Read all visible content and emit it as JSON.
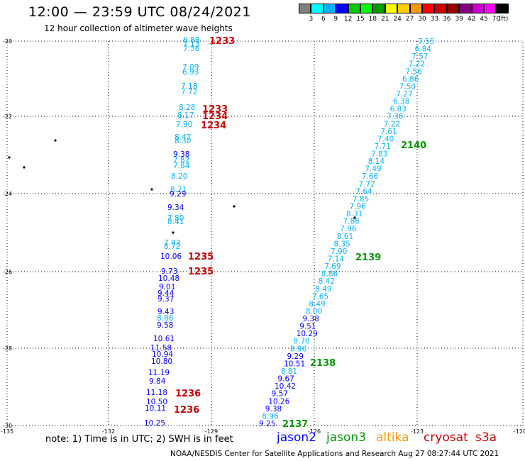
{
  "header": {
    "title": "12:00 — 23:59 UTC 08/24/2021",
    "subtitle": "12 hour collection of altimeter wave heights"
  },
  "colorbar": {
    "unit": "(ft)",
    "colors": [
      "#808080",
      "#00ffff",
      "#00b4ff",
      "#0000ff",
      "#00cc00",
      "#00ff00",
      "#009900",
      "#ffff00",
      "#ffcc00",
      "#ff9900",
      "#ff0000",
      "#cc0000",
      "#990000",
      "#800080",
      "#cc00cc",
      "#ff00ff",
      "#000000"
    ],
    "labels": [
      "3",
      "6",
      "9",
      "12",
      "15",
      "18",
      "21",
      "24",
      "27",
      "30",
      "33",
      "36",
      "39",
      "42",
      "45",
      "70"
    ]
  },
  "map": {
    "lat_labels": [
      "-20",
      "-22",
      "-24",
      "-26",
      "-28",
      "-30"
    ],
    "lon_labels": [
      "-135",
      "-132",
      "-129",
      "-126",
      "-123",
      "-120"
    ]
  },
  "colors": {
    "jason2": "#0000ff",
    "jason3": "#009900",
    "altika": "#ff9900",
    "cryosat": "#cc0000",
    "s3a": "#cc0000",
    "light": "#00b4ff"
  },
  "tracks": {
    "west": [
      {
        "text": "6.88",
        "c": "light"
      },
      {
        "text": "7.13",
        "c": "light"
      },
      {
        "text": "7.36",
        "c": "light"
      },
      {
        "text": "7.09",
        "c": "light"
      },
      {
        "text": "6.93",
        "c": "light"
      },
      {
        "text": "7.18",
        "c": "light"
      },
      {
        "text": "7.72",
        "c": "light"
      },
      {
        "text": "8.28",
        "c": "light"
      },
      {
        "text": "8.17",
        "c": "light"
      },
      {
        "text": "7.90",
        "c": "light"
      },
      {
        "text": "8.47",
        "c": "light"
      },
      {
        "text": "8.30",
        "c": "light"
      },
      {
        "text": "9.38",
        "c": "jason2"
      },
      {
        "text": "7.82",
        "c": "light"
      },
      {
        "text": "7.84",
        "c": "light"
      },
      {
        "text": "8.20",
        "c": "light"
      },
      {
        "text": "8.71",
        "c": "light"
      },
      {
        "text": "9.29",
        "c": "jason2"
      },
      {
        "text": "9.34",
        "c": "jason2"
      },
      {
        "text": "7.80",
        "c": "light"
      },
      {
        "text": "8.41",
        "c": "light"
      },
      {
        "text": "7.93",
        "c": "light"
      },
      {
        "text": "8.72",
        "c": "light"
      },
      {
        "text": "10.06",
        "c": "jason2"
      },
      {
        "text": "9.73",
        "c": "jason2"
      },
      {
        "text": "10.48",
        "c": "jason2"
      },
      {
        "text": "9.01",
        "c": "jason2"
      },
      {
        "text": "9.44",
        "c": "jason2"
      },
      {
        "text": "9.37",
        "c": "jason2"
      },
      {
        "text": "9.43",
        "c": "jason2"
      },
      {
        "text": "8.86",
        "c": "light"
      },
      {
        "text": "9.58",
        "c": "jason2"
      },
      {
        "text": "10.61",
        "c": "jason2"
      },
      {
        "text": "11.58",
        "c": "jason2"
      },
      {
        "text": "10.94",
        "c": "jason2"
      },
      {
        "text": "10.80",
        "c": "jason2"
      },
      {
        "text": "11.19",
        "c": "jason2"
      },
      {
        "text": "9.84",
        "c": "jason2"
      },
      {
        "text": "11.18",
        "c": "jason2"
      },
      {
        "text": "10.50",
        "c": "jason2"
      },
      {
        "text": "10.11",
        "c": "jason2"
      },
      {
        "text": "10.25",
        "c": "jason2"
      }
    ],
    "east": [
      {
        "text": "7.55",
        "c": "light"
      },
      {
        "text": "6.84",
        "c": "light"
      },
      {
        "text": "7.57",
        "c": "light"
      },
      {
        "text": "7.22",
        "c": "light"
      },
      {
        "text": "7.56",
        "c": "light"
      },
      {
        "text": "6.86",
        "c": "light"
      },
      {
        "text": "7.50",
        "c": "light"
      },
      {
        "text": "7.27",
        "c": "light"
      },
      {
        "text": "6.38",
        "c": "light"
      },
      {
        "text": "6.83",
        "c": "light"
      },
      {
        "text": "7.36",
        "c": "light"
      },
      {
        "text": "7.22",
        "c": "light"
      },
      {
        "text": "7.61",
        "c": "light"
      },
      {
        "text": "7.40",
        "c": "light"
      },
      {
        "text": "7.71",
        "c": "light"
      },
      {
        "text": "7.83",
        "c": "light"
      },
      {
        "text": "8.14",
        "c": "light"
      },
      {
        "text": "7.49",
        "c": "light"
      },
      {
        "text": "7.66",
        "c": "light"
      },
      {
        "text": "7.72",
        "c": "light"
      },
      {
        "text": "7.64",
        "c": "light"
      },
      {
        "text": "7.85",
        "c": "light"
      },
      {
        "text": "7.96",
        "c": "light"
      },
      {
        "text": "8.31",
        "c": "light"
      },
      {
        "text": "7.86",
        "c": "light"
      },
      {
        "text": "7.96",
        "c": "light"
      },
      {
        "text": "8.61",
        "c": "light"
      },
      {
        "text": "8.35",
        "c": "light"
      },
      {
        "text": "7.90",
        "c": "light"
      },
      {
        "text": "7.14",
        "c": "light"
      },
      {
        "text": "7.69",
        "c": "light"
      },
      {
        "text": "8.86",
        "c": "light"
      },
      {
        "text": "8.42",
        "c": "light"
      },
      {
        "text": "8.49",
        "c": "light"
      },
      {
        "text": "7.65",
        "c": "light"
      },
      {
        "text": "8.49",
        "c": "light"
      },
      {
        "text": "8.00",
        "c": "light"
      },
      {
        "text": "9.38",
        "c": "jason2"
      },
      {
        "text": "9.51",
        "c": "jason2"
      },
      {
        "text": "10.29",
        "c": "jason2"
      },
      {
        "text": "8.70",
        "c": "light"
      },
      {
        "text": "8.96",
        "c": "light"
      },
      {
        "text": "9.29",
        "c": "jason2"
      },
      {
        "text": "10.51",
        "c": "jason2"
      },
      {
        "text": "8.81",
        "c": "light"
      },
      {
        "text": "9.67",
        "c": "jason2"
      },
      {
        "text": "10.42",
        "c": "jason2"
      },
      {
        "text": "9.57",
        "c": "jason2"
      },
      {
        "text": "10.26",
        "c": "jason2"
      },
      {
        "text": "9.38",
        "c": "jason2"
      },
      {
        "text": "8.96",
        "c": "light"
      },
      {
        "text": "9.25",
        "c": "jason2"
      }
    ]
  },
  "time_labels": [
    {
      "text": "1233",
      "c": "cryosat"
    },
    {
      "text": "1233",
      "c": "cryosat"
    },
    {
      "text": "1234",
      "c": "cryosat"
    },
    {
      "text": "1234",
      "c": "cryosat"
    },
    {
      "text": "1235",
      "c": "cryosat"
    },
    {
      "text": "1235",
      "c": "cryosat"
    },
    {
      "text": "1236",
      "c": "cryosat"
    },
    {
      "text": "1236",
      "c": "cryosat"
    },
    {
      "text": "2140",
      "c": "jason3"
    },
    {
      "text": "2139",
      "c": "jason3"
    },
    {
      "text": "2138",
      "c": "jason3"
    },
    {
      "text": "2137",
      "c": "jason3"
    }
  ],
  "footer": {
    "note": "note:  1) Time is in UTC;  2) SWH is in feet",
    "legend": [
      {
        "label": "jason2",
        "color": "#0000ff"
      },
      {
        "label": "jason3",
        "color": "#009900"
      },
      {
        "label": "altika",
        "color": "#ff9900"
      },
      {
        "label": "cryosat",
        "color": "#cc0000"
      },
      {
        "label": "s3a",
        "color": "#cc0000"
      }
    ],
    "credit": "NOAA/NESDIS Center for Satellite Applications and Research     Aug 27 08:27:44 UTC 2021"
  }
}
